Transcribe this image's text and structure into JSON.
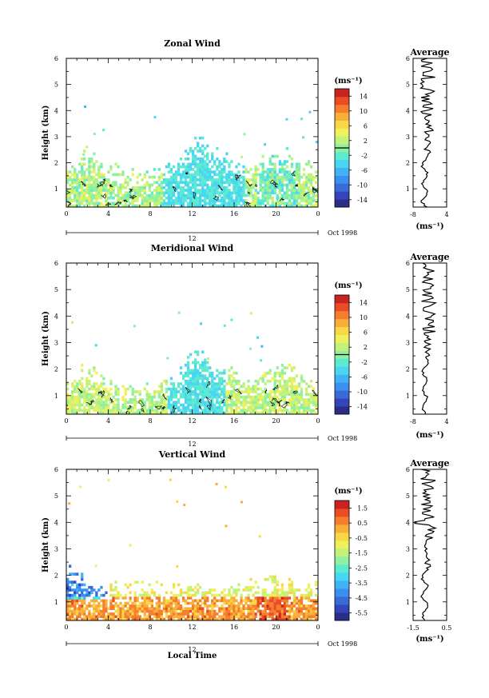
{
  "chart_data": [
    {
      "type": "heatmap",
      "title": "Zonal Wind",
      "ylabel": "Height (km)",
      "xlabel": "",
      "xticks": [
        "0",
        "4",
        "8",
        "12",
        "16",
        "20",
        "0"
      ],
      "yticks": [
        "1",
        "2",
        "3",
        "4",
        "5",
        "6"
      ],
      "xlim": [
        0,
        24
      ],
      "ylim": [
        0.3,
        6
      ],
      "date_bar": {
        "day": "12",
        "month_year": "Oct 1998"
      },
      "colorbar": {
        "unit": "(ms⁻¹)",
        "ticks": [
          "14",
          "10",
          "6",
          "2",
          "-2",
          "-6",
          "-10",
          "-14"
        ],
        "range": [
          -16,
          16
        ]
      },
      "palette": [
        "#2b2e86",
        "#3345b8",
        "#3a6ad8",
        "#3b8ff0",
        "#41b3f5",
        "#4ad6f2",
        "#5cead0",
        "#8ff0a0",
        "#c2f27a",
        "#eef05c",
        "#f9d848",
        "#f9ad3a",
        "#f57e2e",
        "#ea4d26",
        "#c8231e"
      ],
      "average_panel": {
        "title": "Average",
        "xlim": [
          -8,
          4
        ],
        "xticks": [
          "-8",
          "4"
        ],
        "xlabel": "(ms⁻¹)"
      }
    },
    {
      "type": "heatmap",
      "title": "Meridional Wind",
      "ylabel": "Height (km)",
      "xlabel": "",
      "xticks": [
        "0",
        "4",
        "8",
        "12",
        "16",
        "20",
        "0"
      ],
      "yticks": [
        "1",
        "2",
        "3",
        "4",
        "5",
        "6"
      ],
      "xlim": [
        0,
        24
      ],
      "ylim": [
        0.3,
        6
      ],
      "date_bar": {
        "day": "12",
        "month_year": "Oct 1998"
      },
      "colorbar": {
        "unit": "(ms⁻¹)",
        "ticks": [
          "14",
          "10",
          "6",
          "2",
          "-2",
          "-6",
          "-10",
          "-14"
        ],
        "range": [
          -16,
          16
        ]
      },
      "palette": [
        "#2b2e86",
        "#3345b8",
        "#3a6ad8",
        "#3b8ff0",
        "#41b3f5",
        "#4ad6f2",
        "#5cead0",
        "#8ff0a0",
        "#c2f27a",
        "#eef05c",
        "#f9d848",
        "#f9ad3a",
        "#f57e2e",
        "#ea4d26",
        "#c8231e"
      ],
      "average_panel": {
        "title": "Average",
        "xlim": [
          -8,
          4
        ],
        "xticks": [
          "-8",
          "4"
        ],
        "xlabel": "(ms⁻¹)"
      }
    },
    {
      "type": "heatmap",
      "title": "Vertical Wind",
      "ylabel": "Height (km)",
      "xlabel": "Local Time",
      "xticks": [
        "0",
        "4",
        "8",
        "12",
        "16",
        "20",
        "0"
      ],
      "yticks": [
        "1",
        "2",
        "3",
        "4",
        "5",
        "6"
      ],
      "xlim": [
        0,
        24
      ],
      "ylim": [
        0.3,
        6
      ],
      "date_bar": {
        "day": "12",
        "month_year": "Oct 1998"
      },
      "colorbar": {
        "unit": "(ms⁻¹)",
        "ticks": [
          "1.5",
          "0.5",
          "-0.5",
          "-1.5",
          "-2.5",
          "-3.5",
          "-4.5",
          "-5.5"
        ],
        "range": [
          -6,
          2
        ]
      },
      "palette": [
        "#2b2e86",
        "#3345b8",
        "#3a6ad8",
        "#3b8ff0",
        "#41b3f5",
        "#4ad6f2",
        "#5cead0",
        "#8ff0a0",
        "#c2f27a",
        "#eef05c",
        "#f9d848",
        "#f9ad3a",
        "#f57e2e",
        "#ea4d26",
        "#c8231e"
      ],
      "average_panel": {
        "title": "Average",
        "xlim": [
          -1.5,
          0.5
        ],
        "xticks": [
          "-1.5",
          "0.5"
        ],
        "xlabel": "(ms⁻¹)"
      }
    }
  ]
}
